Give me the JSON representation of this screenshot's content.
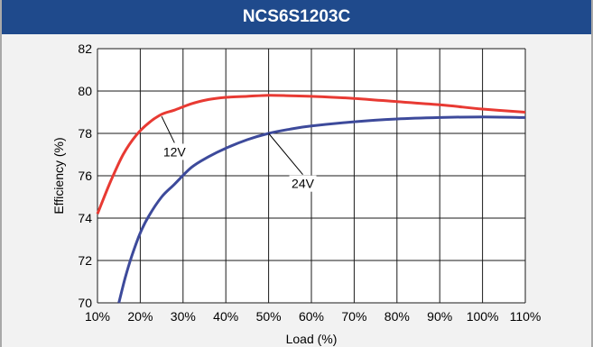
{
  "chart_data": {
    "type": "line",
    "title": "NCS6S1203C",
    "xlabel": "Load (%)",
    "ylabel": "Efficiency (%)",
    "xlim": [
      10,
      110
    ],
    "ylim": [
      70,
      82
    ],
    "x_ticks": [
      10,
      20,
      30,
      40,
      50,
      60,
      70,
      80,
      90,
      100,
      110
    ],
    "x_tick_labels": [
      "10%",
      "20%",
      "30%",
      "40%",
      "50%",
      "60%",
      "70%",
      "80%",
      "90%",
      "100%",
      "110%"
    ],
    "y_ticks": [
      70,
      72,
      74,
      76,
      78,
      80,
      82
    ],
    "y_tick_labels": [
      "70",
      "72",
      "74",
      "76",
      "78",
      "80",
      "82"
    ],
    "grid": true,
    "series": [
      {
        "name": "12V",
        "color": "#e83a33",
        "x": [
          10,
          13,
          16,
          19,
          22,
          25,
          28,
          32,
          36,
          40,
          45,
          50,
          55,
          60,
          70,
          80,
          90,
          100,
          110
        ],
        "y": [
          74.2,
          75.7,
          77.0,
          77.9,
          78.5,
          78.9,
          79.1,
          79.4,
          79.6,
          79.7,
          79.75,
          79.8,
          79.78,
          79.75,
          79.65,
          79.5,
          79.35,
          79.15,
          79.0
        ]
      },
      {
        "name": "24V",
        "color": "#3d4a9b",
        "x": [
          15,
          16.5,
          18,
          20,
          22,
          25,
          28,
          32,
          36,
          40,
          45,
          50,
          55,
          60,
          70,
          80,
          90,
          100,
          110
        ],
        "y": [
          70.0,
          71.2,
          72.2,
          73.3,
          74.1,
          75.0,
          75.6,
          76.4,
          76.9,
          77.3,
          77.7,
          78.0,
          78.2,
          78.35,
          78.55,
          78.68,
          78.75,
          78.78,
          78.75
        ]
      }
    ],
    "annotations": [
      {
        "text": "12V",
        "x": 28,
        "y": 77.3,
        "leader_x": 25,
        "leader_y": 78.8
      },
      {
        "text": "24V",
        "x": 58,
        "y": 75.8,
        "leader_x": 50,
        "leader_y": 78.0
      }
    ]
  }
}
